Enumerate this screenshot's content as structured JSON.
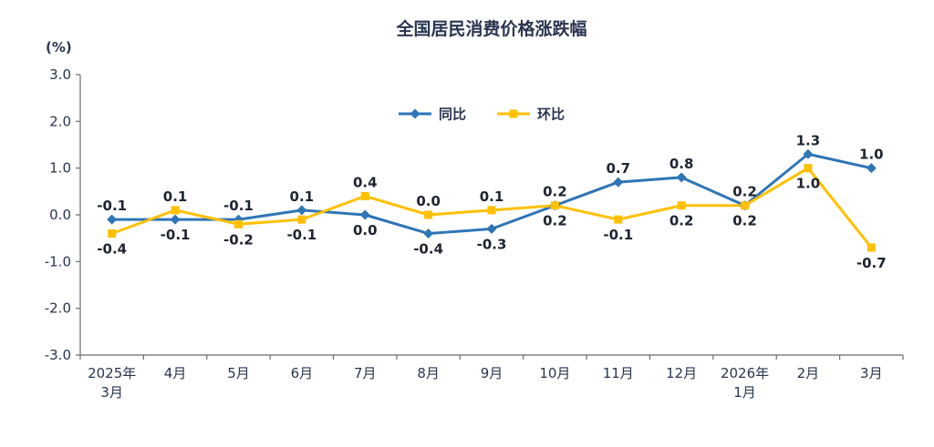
{
  "chart_data": {
    "type": "line",
    "title": "全国居民消费价格涨跌幅",
    "ylabel": "(%)",
    "categories": [
      "2025年\n3月",
      "4月",
      "5月",
      "6月",
      "7月",
      "8月",
      "9月",
      "10月",
      "11月",
      "12月",
      "2026年\n1月",
      "2月",
      "3月"
    ],
    "series": [
      {
        "name": "同比",
        "color": "#2E75B6",
        "marker": "diamond",
        "values": [
          -0.1,
          -0.1,
          -0.1,
          0.1,
          0.0,
          -0.4,
          -0.3,
          0.2,
          0.7,
          0.8,
          0.2,
          1.3,
          1.0
        ]
      },
      {
        "name": "环比",
        "color": "#FFC000",
        "marker": "square",
        "values": [
          -0.4,
          0.1,
          -0.2,
          -0.1,
          0.4,
          0.0,
          0.1,
          0.2,
          -0.1,
          0.2,
          0.2,
          1.0,
          -0.7
        ]
      }
    ],
    "ylim": [
      -3.0,
      3.0
    ],
    "y_ticks": [
      3.0,
      2.0,
      1.0,
      0.0,
      -1.0,
      -2.0,
      -3.0
    ],
    "grid": false,
    "legend_position": "top-center"
  }
}
